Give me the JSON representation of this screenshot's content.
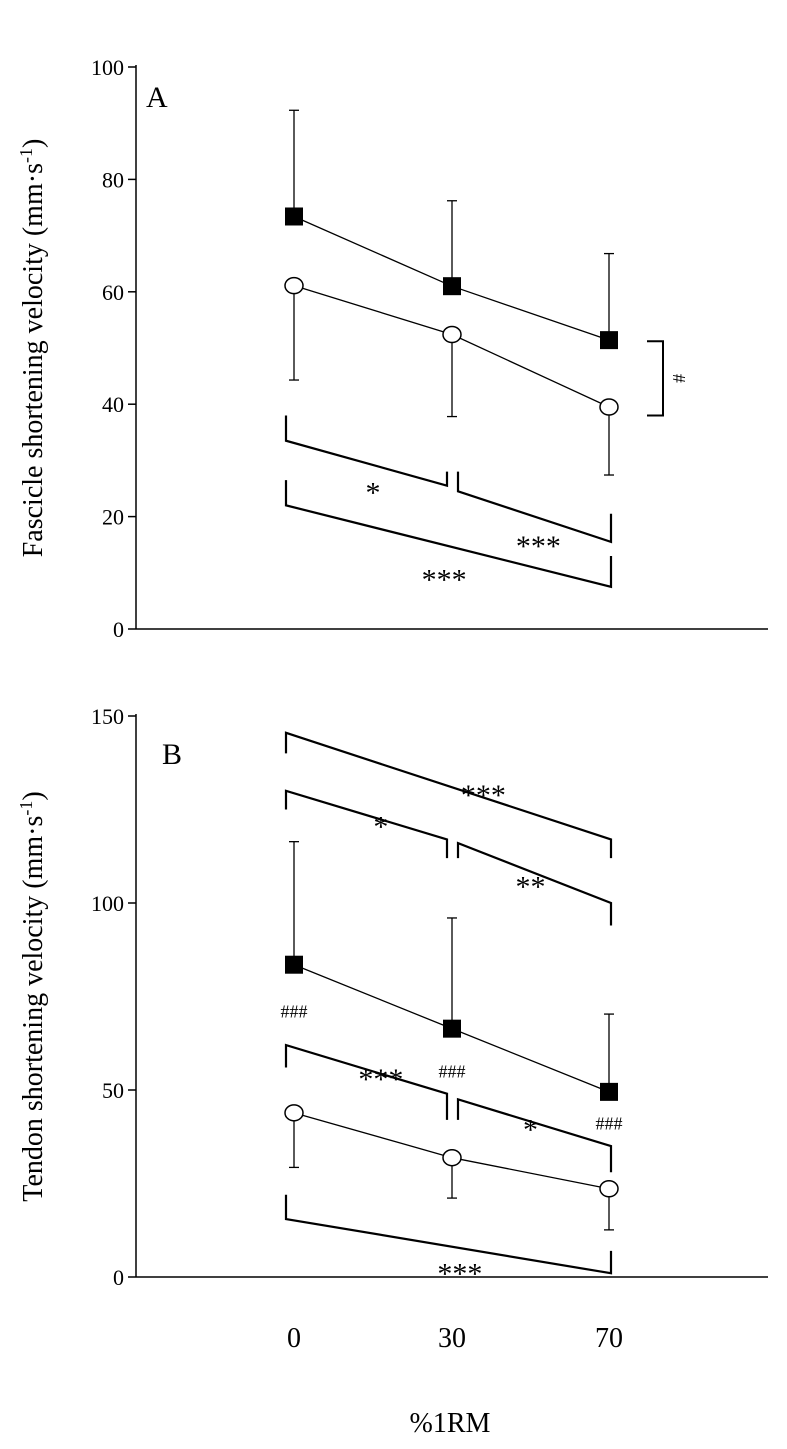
{
  "chart_data": [
    {
      "type": "line",
      "panel_label": "A",
      "ylabel": "Fascicle shortening velocity (mm·s",
      "ylabel_sup": "-1",
      "ylabel_end": ")",
      "xlabel": "%1RM",
      "categories": [
        "0",
        "30",
        "70"
      ],
      "ylim": [
        0,
        100
      ],
      "yticks": [
        0,
        20,
        40,
        60,
        80,
        100
      ],
      "series": [
        {
          "name": "filled squares",
          "marker": "square-filled",
          "values": [
            73.4,
            61.0,
            51.4
          ],
          "err_upper": [
            92.3,
            76.2,
            66.8
          ],
          "err_lower": null
        },
        {
          "name": "open circles",
          "marker": "circle-open",
          "values": [
            61.1,
            52.4,
            39.5
          ],
          "err_upper": null,
          "err_lower": [
            44.3,
            37.8,
            27.4
          ]
        }
      ],
      "significance": [
        {
          "from": 0,
          "to": 1,
          "y_start": 33.5,
          "y_end": 25.5,
          "tick_start": 38,
          "tick_end": 28,
          "label": "*",
          "label_x": 0.5,
          "label_y": 25
        },
        {
          "from": 1,
          "to": 2,
          "y_start": 24.5,
          "y_end": 15.5,
          "tick_start": 28,
          "tick_end": 20.5,
          "label": "***",
          "label_x": 1.55,
          "label_y": 15.5
        },
        {
          "from": 0,
          "to": 2,
          "y_start": 22,
          "y_end": 7.5,
          "tick_start": 26.5,
          "tick_end": 13,
          "label": "***",
          "label_x": 0.95,
          "label_y": 9.5
        }
      ],
      "group_brackets": [
        {
          "y_top": 51.2,
          "y_bottom": 38,
          "label": "#"
        }
      ],
      "hash_labels": []
    },
    {
      "type": "line",
      "panel_label": "B",
      "ylabel": "Tendon shortening velocity (mm·s",
      "ylabel_sup": "-1",
      "ylabel_end": ")",
      "xlabel": "%1RM",
      "categories": [
        "0",
        "30",
        "70"
      ],
      "ylim": [
        0,
        150
      ],
      "yticks": [
        0,
        50,
        100,
        150
      ],
      "series": [
        {
          "name": "filled squares",
          "marker": "square-filled",
          "values": [
            83.5,
            66.4,
            49.5
          ],
          "err_upper": [
            116.4,
            96.0,
            70.3
          ],
          "err_lower": null
        },
        {
          "name": "open circles",
          "marker": "circle-open",
          "values": [
            43.9,
            31.9,
            23.6
          ],
          "err_upper": null,
          "err_lower": [
            29.3,
            21.1,
            12.6
          ]
        }
      ],
      "significance": [
        {
          "from": 0,
          "to": 2,
          "y_start": 145.5,
          "y_end": 117,
          "tick_start": 140,
          "tick_end": 112,
          "label": "***",
          "label_x": 1.2,
          "label_y": 130
        },
        {
          "from": 0,
          "to": 1,
          "y_start": 130,
          "y_end": 117,
          "tick_start": 125,
          "tick_end": 112,
          "label": "*",
          "label_x": 0.55,
          "label_y": 121.5
        },
        {
          "from": 1,
          "to": 2,
          "y_start": 116,
          "y_end": 100,
          "tick_start": 112,
          "tick_end": 94,
          "label": "**",
          "label_x": 1.5,
          "label_y": 105.5
        },
        {
          "from": 0,
          "to": 1,
          "y_start": 62,
          "y_end": 49,
          "tick_start": 56,
          "tick_end": 42,
          "label": "***",
          "label_x": 0.55,
          "label_y": 54
        },
        {
          "from": 1,
          "to": 2,
          "y_start": 47.5,
          "y_end": 35,
          "tick_start": 42,
          "tick_end": 28,
          "label": "*",
          "label_x": 1.5,
          "label_y": 40.5
        },
        {
          "from": 0,
          "to": 2,
          "y_start": 15.5,
          "y_end": 1,
          "tick_start": 22,
          "tick_end": 7,
          "label": "***",
          "label_x": 1.05,
          "label_y": 2
        }
      ],
      "group_brackets": [],
      "hash_labels": [
        {
          "x": 0,
          "y": 71,
          "label": "###"
        },
        {
          "x": 1,
          "y": 55,
          "label": "###"
        },
        {
          "x": 2,
          "y": 41,
          "label": "###"
        }
      ]
    }
  ]
}
